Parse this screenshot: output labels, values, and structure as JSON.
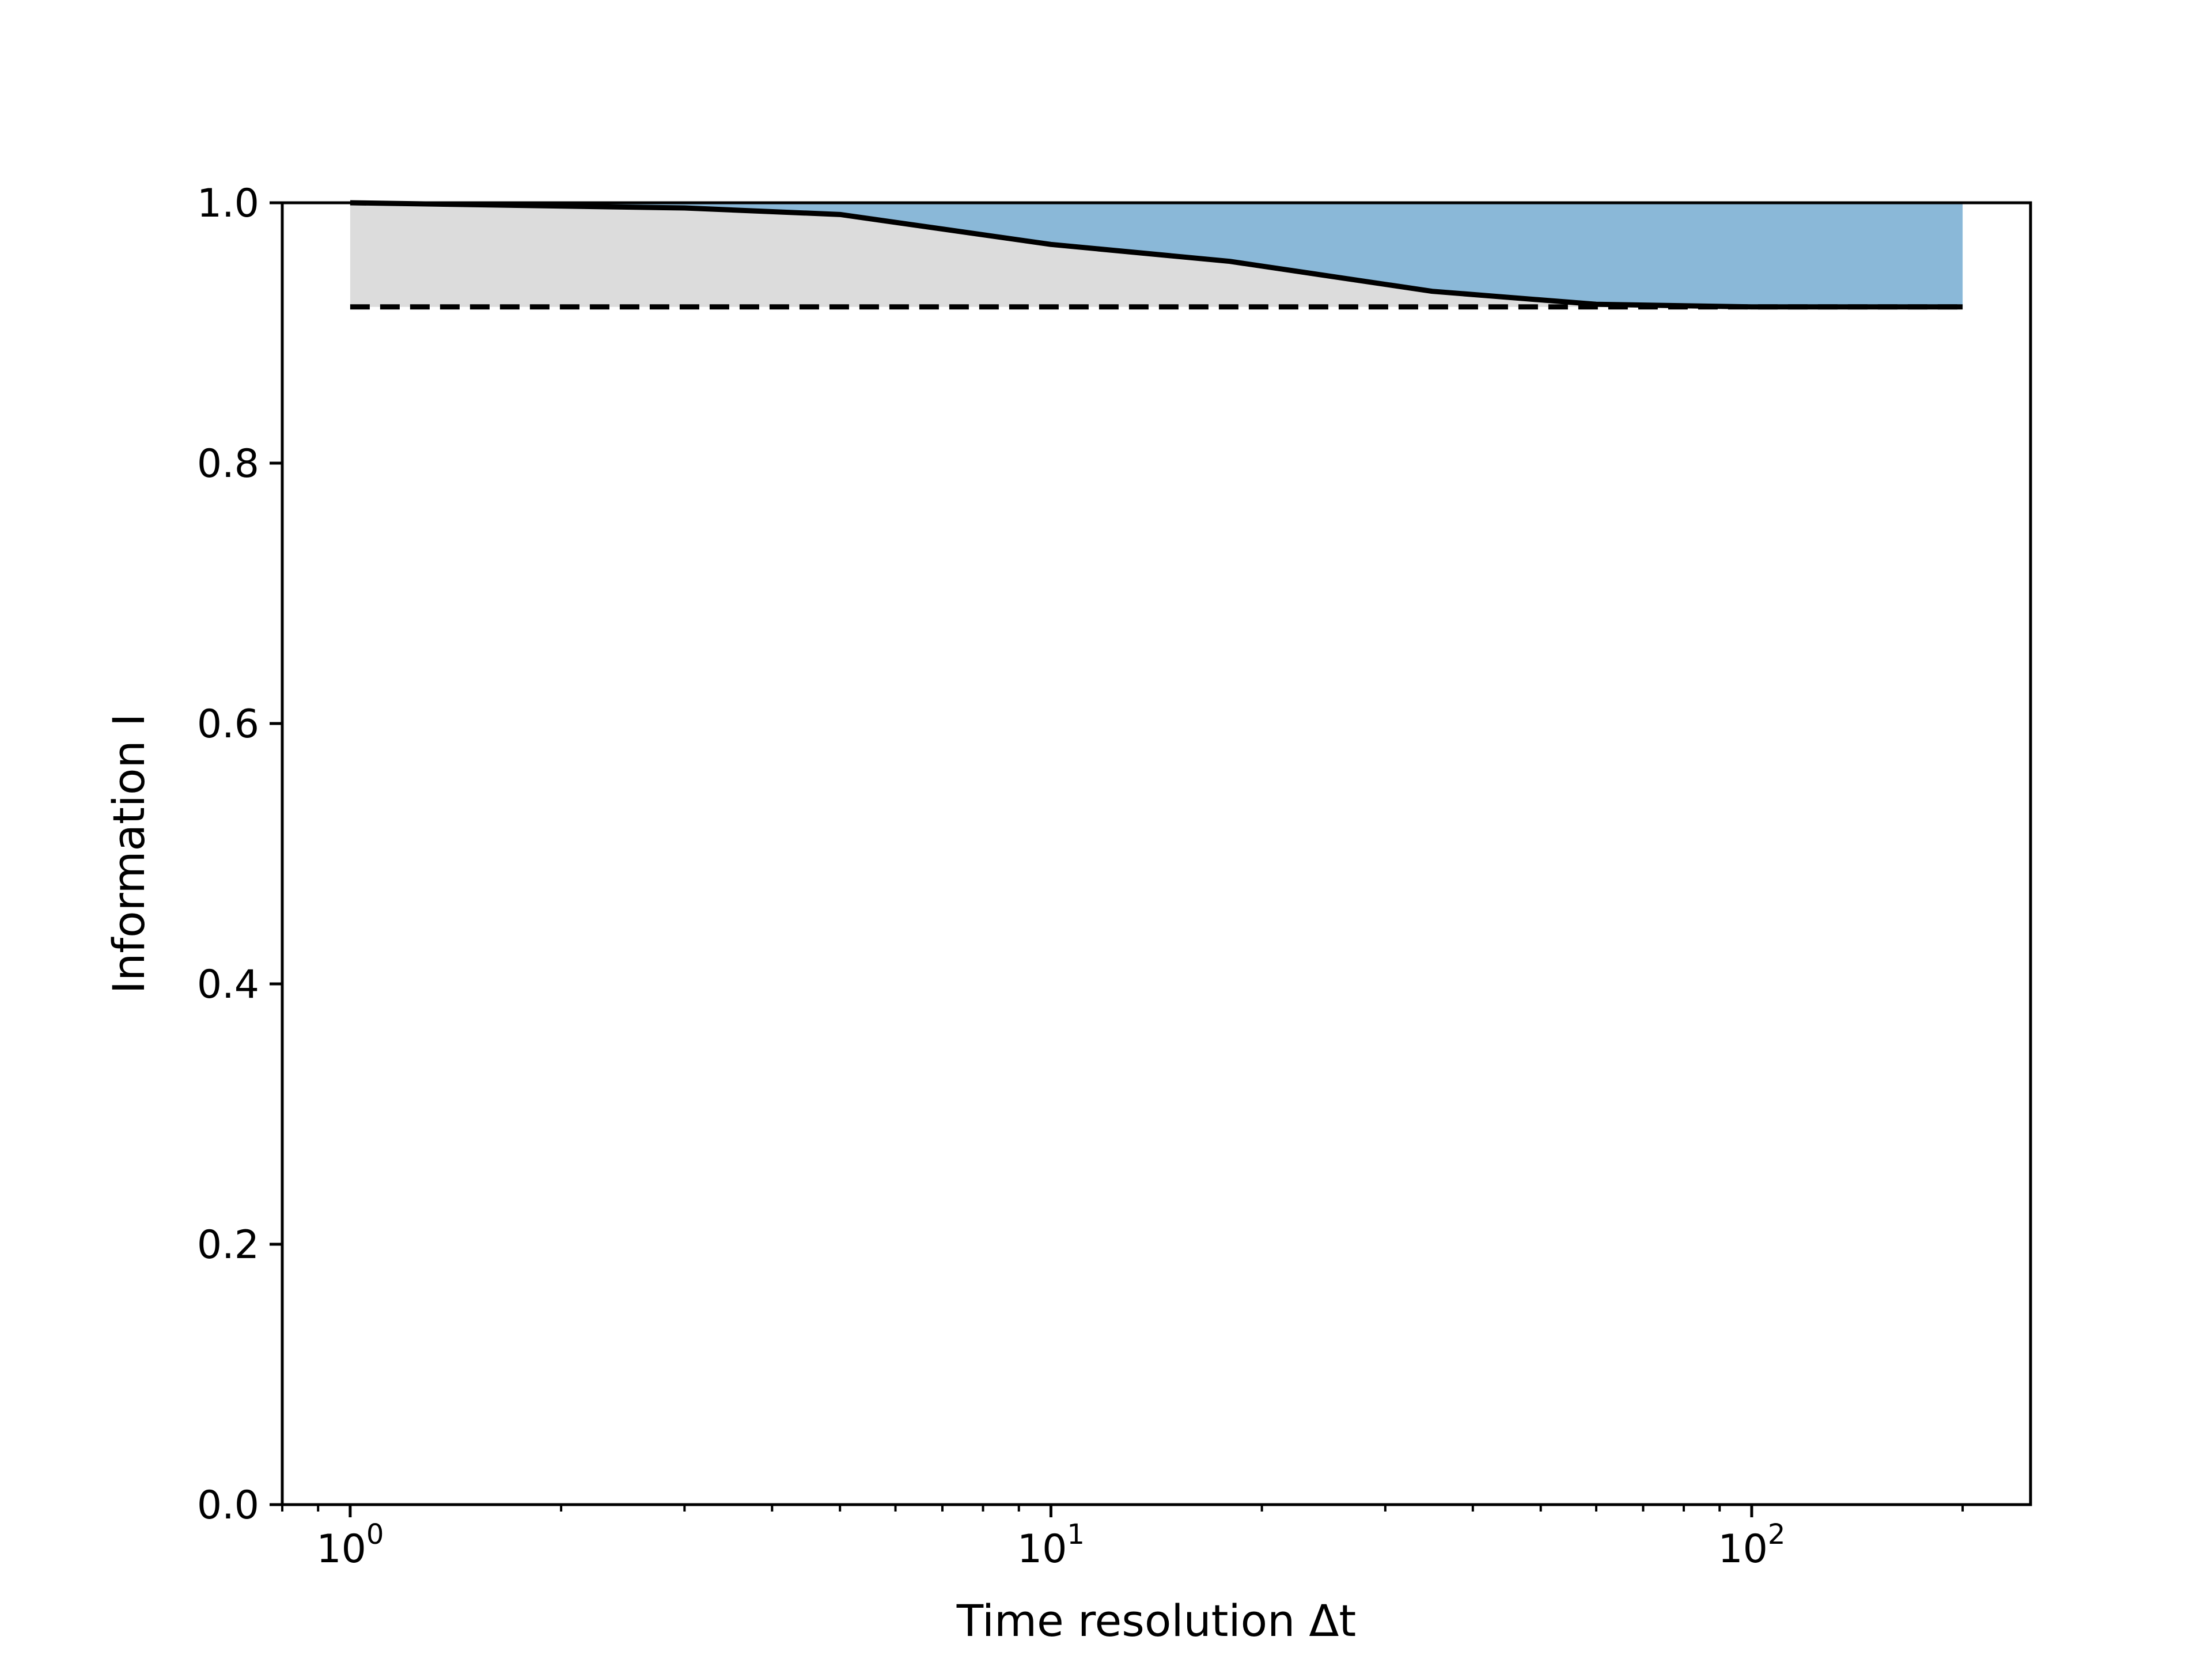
{
  "chart_data": {
    "type": "area",
    "xscale": "log",
    "xlabel": "Time resolution Δt",
    "ylabel": "Information I",
    "xlim": [
      0.8,
      250
    ],
    "ylim": [
      0,
      1.0
    ],
    "grid": false,
    "x_ticks": [
      {
        "value": 1,
        "base": "10",
        "exp": "0"
      },
      {
        "value": 10,
        "base": "10",
        "exp": "1"
      },
      {
        "value": 100,
        "base": "10",
        "exp": "2"
      }
    ],
    "y_ticks": [
      {
        "value": 0.0,
        "label": "0.0"
      },
      {
        "value": 0.2,
        "label": "0.2"
      },
      {
        "value": 0.4,
        "label": "0.4"
      },
      {
        "value": 0.6,
        "label": "0.6"
      },
      {
        "value": 0.8,
        "label": "0.8"
      },
      {
        "value": 1.0,
        "label": "1.0"
      }
    ],
    "series": [
      {
        "style": "solid line",
        "color": "#000000",
        "x": [
          1,
          3,
          5,
          10,
          18,
          35,
          60,
          100,
          200
        ],
        "values": [
          1.0,
          0.996,
          0.991,
          0.968,
          0.955,
          0.932,
          0.922,
          0.92,
          0.92
        ]
      },
      {
        "style": "dashed line",
        "color": "#000000",
        "x": [
          1,
          200
        ],
        "values": [
          0.92,
          0.92
        ]
      }
    ],
    "fills": [
      {
        "color": "#dcdcdc",
        "between": "solid line and dashed line"
      },
      {
        "color": "#8ab8d8",
        "between": "1.0 and solid line"
      }
    ]
  }
}
